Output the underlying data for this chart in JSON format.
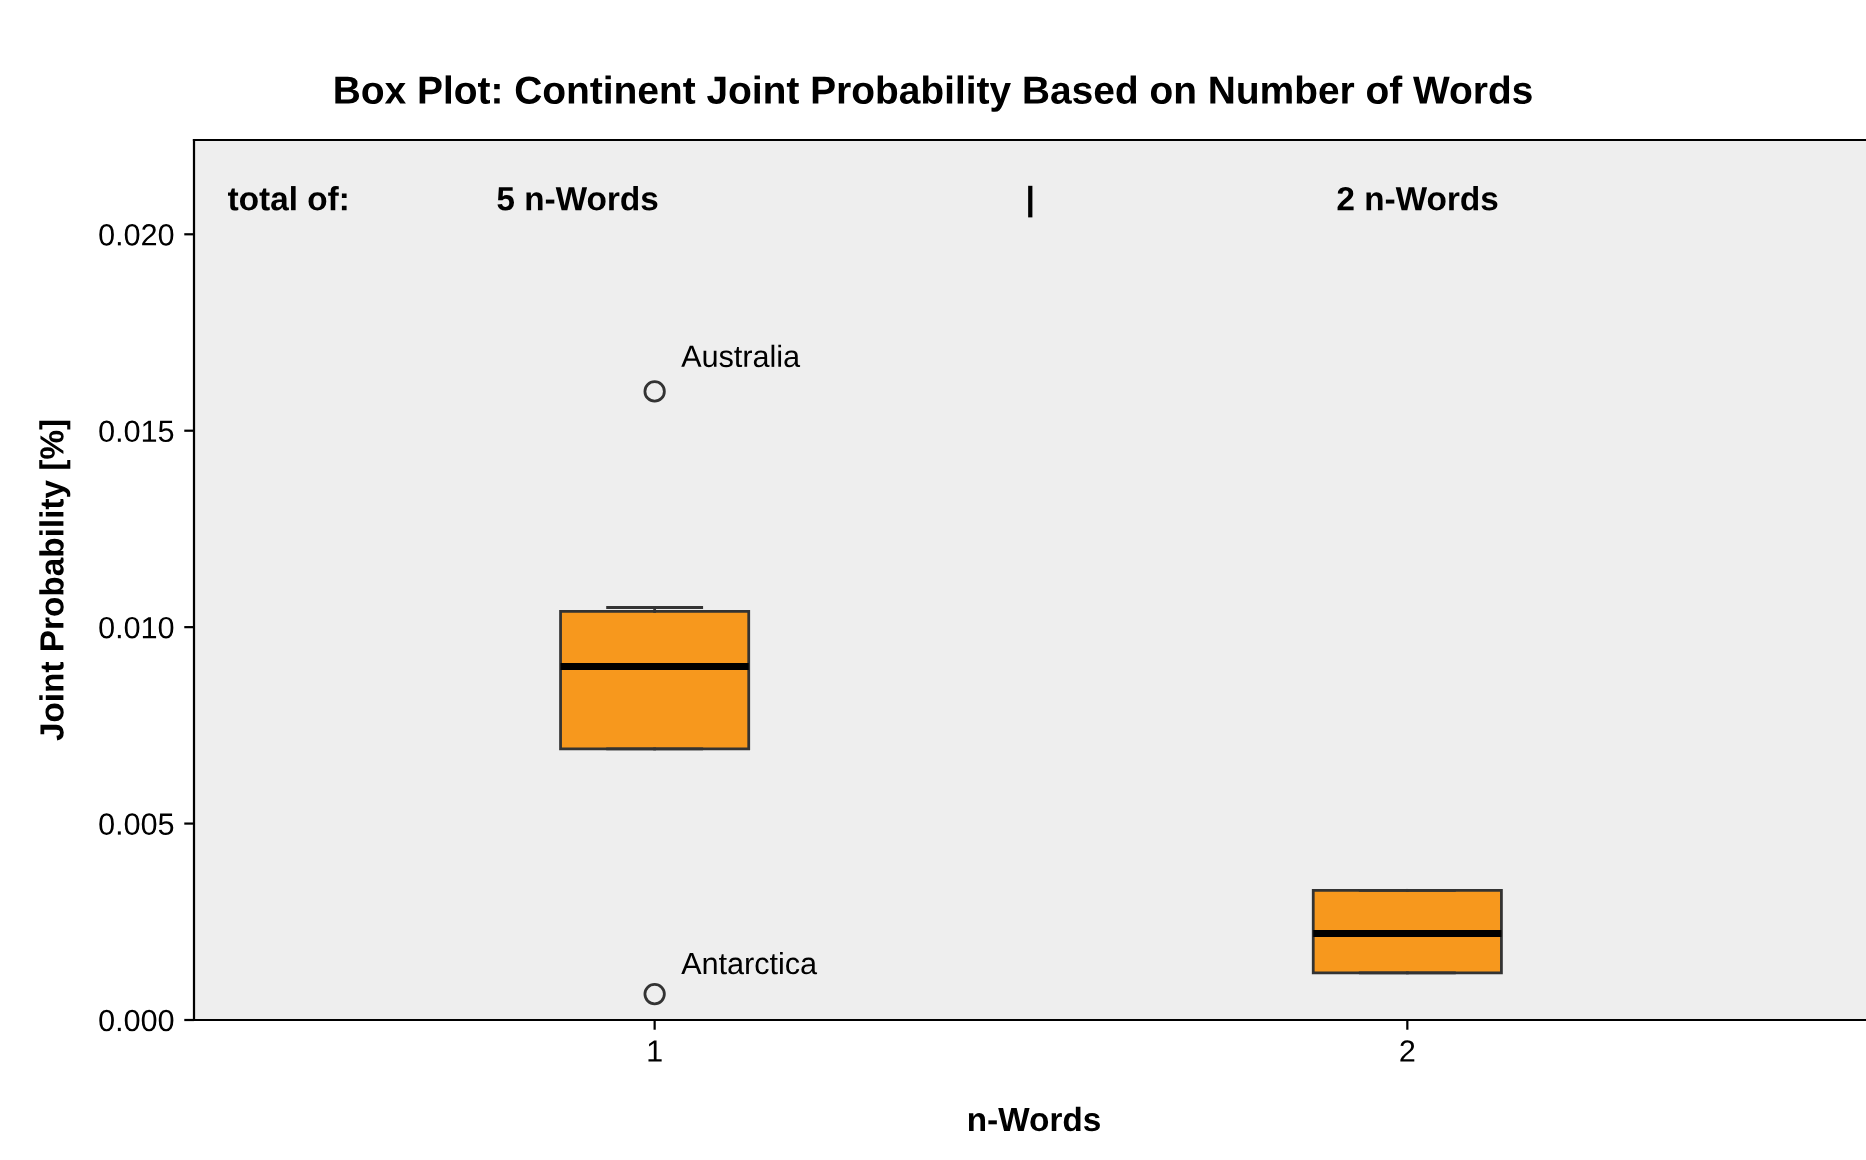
{
  "chart_data": {
    "type": "box",
    "title": "Box Plot: Continent Joint Probability Based on Number of Words",
    "xlabel": "n-Words",
    "ylabel": "Joint Probability [%]",
    "categories": [
      "1",
      "2"
    ],
    "series": [
      {
        "color": "#f7981d",
        "boxes": [
          {
            "low": 0.0069,
            "q1": 0.0069,
            "median": 0.009,
            "q3": 0.0104,
            "high": 0.0105,
            "outliers": [
              0.016,
              0.00066
            ]
          },
          {
            "low": 0.0012,
            "q1": 0.0012,
            "median": 0.0022,
            "q3": 0.0033,
            "high": 0.0033
          }
        ]
      }
    ],
    "ylim": [
      0,
      0.0224
    ],
    "yticks": [
      {
        "value": 0,
        "label": "0.000"
      },
      {
        "value": 0.005,
        "label": "0.005"
      },
      {
        "value": 0.01,
        "label": "0.010"
      },
      {
        "value": 0.015,
        "label": "0.015"
      },
      {
        "value": 0.02,
        "label": "0.020"
      }
    ],
    "grid": false,
    "legend": false,
    "annotations": [
      "total of:",
      "5 n-Words",
      "|",
      "2 n-Words",
      "Australia",
      "Antarctica"
    ]
  }
}
